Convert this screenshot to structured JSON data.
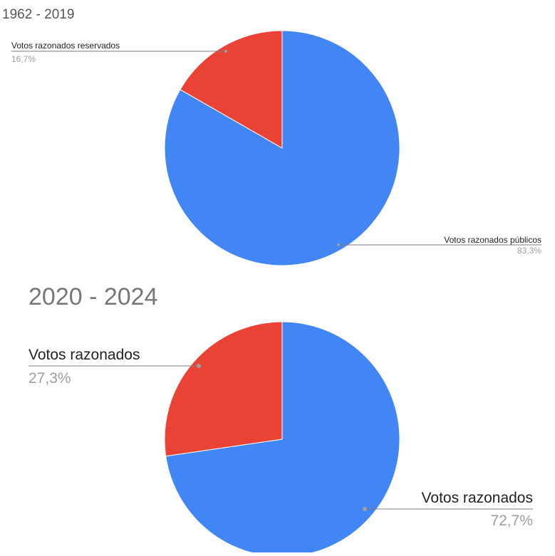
{
  "chart_data": [
    {
      "type": "pie",
      "title": "1962 - 2019",
      "categories": [
        "Votos razonados públicos",
        "Votos razonados reservados"
      ],
      "values": [
        83.3,
        16.7
      ],
      "value_labels": [
        "83,3%",
        "16,7%"
      ],
      "colors": [
        "#4285F4",
        "#EA4335"
      ],
      "legend": "none"
    },
    {
      "type": "pie",
      "title": "2020 - 2024",
      "categories": [
        "Votos razonados",
        "Votos razonados"
      ],
      "values": [
        72.7,
        27.3
      ],
      "value_labels": [
        "72,7%",
        "27,3%"
      ],
      "colors": [
        "#4285F4",
        "#EA4335"
      ],
      "legend": "none"
    }
  ]
}
